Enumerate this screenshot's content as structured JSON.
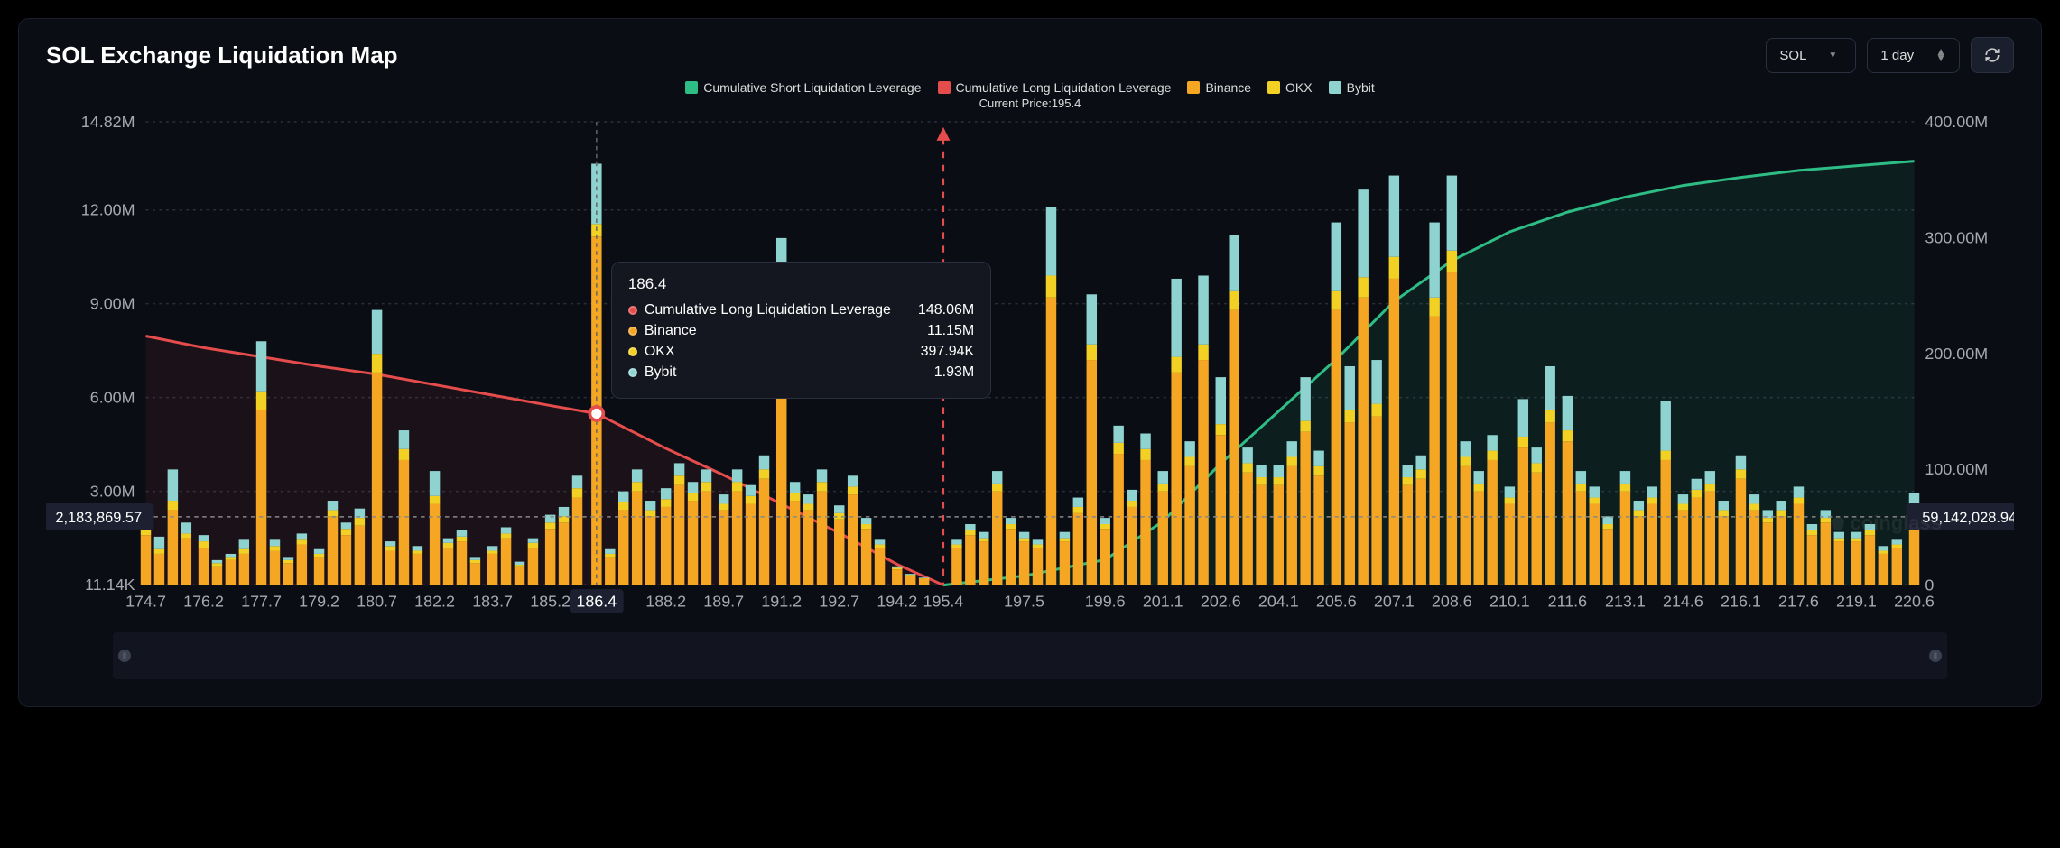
{
  "title": "SOL Exchange Liquidation Map",
  "controls": {
    "symbol": "SOL",
    "timeframe": "1 day"
  },
  "legend": [
    {
      "label": "Cumulative Short Liquidation Leverage",
      "color": "#2dbd85"
    },
    {
      "label": "Cumulative Long Liquidation Leverage",
      "color": "#e54c4c"
    },
    {
      "label": "Binance",
      "color": "#f5a623"
    },
    {
      "label": "OKX",
      "color": "#f2d024"
    },
    {
      "label": "Bybit",
      "color": "#8fd3d1"
    }
  ],
  "current_price_prefix": "Current Price:",
  "current_price": 195.4,
  "chart": {
    "type": "bar_stacked_with_lines",
    "background": "#0a0d14",
    "grid_color": "#2a2e3a",
    "axis_text_color": "#a6a9b3",
    "font_size": 12,
    "left_axis": {
      "ticks": [
        {
          "v": 11140,
          "label": "11.14K"
        },
        {
          "v": 3000000,
          "label": "3.00M"
        },
        {
          "v": 6000000,
          "label": "6.00M"
        },
        {
          "v": 9000000,
          "label": "9.00M"
        },
        {
          "v": 12000000,
          "label": "12.00M"
        },
        {
          "v": 14820000,
          "label": "14.82M"
        }
      ],
      "min": 0,
      "max": 14820000
    },
    "right_axis": {
      "ticks": [
        {
          "v": 0,
          "label": "0"
        },
        {
          "v": 100000000,
          "label": "100.00M"
        },
        {
          "v": 200000000,
          "label": "200.00M"
        },
        {
          "v": 300000000,
          "label": "300.00M"
        },
        {
          "v": 400000000,
          "label": "400.00M"
        }
      ],
      "min": 0,
      "max": 400000000
    },
    "crosshair_left_value": "2,183,869.57",
    "crosshair_right_value": "59,142,028.94",
    "hover_x": "186.4",
    "x_highlight": "186.4",
    "x_labels": [
      "174.7",
      "176.2",
      "177.7",
      "179.2",
      "180.7",
      "182.2",
      "183.7",
      "185.2",
      "186.4",
      "188.2",
      "189.7",
      "191.2",
      "192.7",
      "194.2",
      "195.4",
      "197.5",
      "199.6",
      "201.1",
      "202.6",
      "204.1",
      "205.6",
      "207.1",
      "208.6",
      "210.1",
      "211.6",
      "213.1",
      "214.6",
      "216.1",
      "217.6",
      "219.1",
      "220.6"
    ],
    "colors": {
      "binance": "#f5a623",
      "okx": "#f2d024",
      "bybit": "#8fd3d1",
      "long_line": "#e54c4c",
      "short_line": "#2dbd85",
      "long_area": "rgba(229,76,76,0.08)",
      "short_area": "rgba(45,189,133,0.10)",
      "current_price_line": "#e54c4c"
    },
    "long_line": [
      {
        "x": "174.7",
        "v": 215000000
      },
      {
        "x": "176.2",
        "v": 205000000
      },
      {
        "x": "177.7",
        "v": 197000000
      },
      {
        "x": "179.2",
        "v": 189000000
      },
      {
        "x": "180.7",
        "v": 182000000
      },
      {
        "x": "182.2",
        "v": 173000000
      },
      {
        "x": "183.7",
        "v": 164000000
      },
      {
        "x": "185.2",
        "v": 155000000
      },
      {
        "x": "186.4",
        "v": 148060000
      },
      {
        "x": "188.2",
        "v": 118000000
      },
      {
        "x": "189.7",
        "v": 95000000
      },
      {
        "x": "191.2",
        "v": 70000000
      },
      {
        "x": "192.7",
        "v": 45000000
      },
      {
        "x": "194.2",
        "v": 18000000
      },
      {
        "x": "195.4",
        "v": 0
      }
    ],
    "short_line": [
      {
        "x": "195.4",
        "v": 0
      },
      {
        "x": "197.5",
        "v": 8000000
      },
      {
        "x": "199.6",
        "v": 22000000
      },
      {
        "x": "201.1",
        "v": 55000000
      },
      {
        "x": "202.6",
        "v": 105000000
      },
      {
        "x": "204.1",
        "v": 150000000
      },
      {
        "x": "205.6",
        "v": 195000000
      },
      {
        "x": "207.1",
        "v": 245000000
      },
      {
        "x": "208.6",
        "v": 280000000
      },
      {
        "x": "210.1",
        "v": 305000000
      },
      {
        "x": "211.6",
        "v": 322000000
      },
      {
        "x": "213.1",
        "v": 335000000
      },
      {
        "x": "214.6",
        "v": 345000000
      },
      {
        "x": "216.1",
        "v": 352000000
      },
      {
        "x": "217.6",
        "v": 358000000
      },
      {
        "x": "219.1",
        "v": 362000000
      },
      {
        "x": "220.6",
        "v": 366000000
      }
    ],
    "bars": [
      {
        "x": "174.7",
        "b": 1.6,
        "o": 0.3,
        "y": 0.3
      },
      {
        "x": "175.05",
        "b": 1.0,
        "o": 0.15,
        "y": 0.4
      },
      {
        "x": "175.4",
        "b": 2.4,
        "o": 0.3,
        "y": 1.0
      },
      {
        "x": "175.75",
        "b": 1.5,
        "o": 0.15,
        "y": 0.35
      },
      {
        "x": "176.2",
        "b": 1.2,
        "o": 0.2,
        "y": 0.2
      },
      {
        "x": "176.55",
        "b": 0.6,
        "o": 0.1,
        "y": 0.1
      },
      {
        "x": "176.9",
        "b": 0.8,
        "o": 0.1,
        "y": 0.1
      },
      {
        "x": "177.25",
        "b": 1.0,
        "o": 0.15,
        "y": 0.3
      },
      {
        "x": "177.7",
        "b": 5.6,
        "o": 0.6,
        "y": 1.6
      },
      {
        "x": "178.05",
        "b": 1.1,
        "o": 0.15,
        "y": 0.2
      },
      {
        "x": "178.4",
        "b": 0.7,
        "o": 0.1,
        "y": 0.1
      },
      {
        "x": "178.75",
        "b": 1.3,
        "o": 0.15,
        "y": 0.2
      },
      {
        "x": "179.2",
        "b": 0.9,
        "o": 0.1,
        "y": 0.15
      },
      {
        "x": "179.55",
        "b": 2.2,
        "o": 0.2,
        "y": 0.3
      },
      {
        "x": "179.9",
        "b": 1.6,
        "o": 0.2,
        "y": 0.2
      },
      {
        "x": "180.25",
        "b": 1.9,
        "o": 0.25,
        "y": 0.3
      },
      {
        "x": "180.7",
        "b": 6.8,
        "o": 0.6,
        "y": 1.4
      },
      {
        "x": "181.05",
        "b": 1.1,
        "o": 0.15,
        "y": 0.15
      },
      {
        "x": "181.4",
        "b": 4.0,
        "o": 0.35,
        "y": 0.6
      },
      {
        "x": "181.75",
        "b": 1.0,
        "o": 0.1,
        "y": 0.15
      },
      {
        "x": "182.2",
        "b": 2.6,
        "o": 0.25,
        "y": 0.8
      },
      {
        "x": "182.55",
        "b": 1.2,
        "o": 0.15,
        "y": 0.15
      },
      {
        "x": "182.9",
        "b": 1.4,
        "o": 0.15,
        "y": 0.2
      },
      {
        "x": "183.25",
        "b": 0.7,
        "o": 0.1,
        "y": 0.1
      },
      {
        "x": "183.7",
        "b": 1.0,
        "o": 0.1,
        "y": 0.15
      },
      {
        "x": "184.05",
        "b": 1.5,
        "o": 0.15,
        "y": 0.2
      },
      {
        "x": "184.4",
        "b": 0.6,
        "o": 0.05,
        "y": 0.1
      },
      {
        "x": "184.75",
        "b": 1.2,
        "o": 0.15,
        "y": 0.15
      },
      {
        "x": "185.2",
        "b": 1.8,
        "o": 0.2,
        "y": 0.25
      },
      {
        "x": "185.55",
        "b": 2.0,
        "o": 0.2,
        "y": 0.3
      },
      {
        "x": "185.9",
        "b": 2.8,
        "o": 0.3,
        "y": 0.4
      },
      {
        "x": "186.4",
        "b": 11.15,
        "o": 0.398,
        "y": 1.93
      },
      {
        "x": "186.75",
        "b": 0.9,
        "o": 0.1,
        "y": 0.15
      },
      {
        "x": "187.1",
        "b": 2.4,
        "o": 0.25,
        "y": 0.35
      },
      {
        "x": "187.45",
        "b": 3.0,
        "o": 0.3,
        "y": 0.4
      },
      {
        "x": "187.8",
        "b": 2.2,
        "o": 0.2,
        "y": 0.3
      },
      {
        "x": "188.2",
        "b": 2.5,
        "o": 0.25,
        "y": 0.35
      },
      {
        "x": "188.55",
        "b": 3.2,
        "o": 0.3,
        "y": 0.4
      },
      {
        "x": "188.9",
        "b": 2.7,
        "o": 0.25,
        "y": 0.35
      },
      {
        "x": "189.25",
        "b": 3.0,
        "o": 0.3,
        "y": 0.4
      },
      {
        "x": "189.7",
        "b": 2.4,
        "o": 0.2,
        "y": 0.3
      },
      {
        "x": "190.05",
        "b": 3.0,
        "o": 0.3,
        "y": 0.4
      },
      {
        "x": "190.4",
        "b": 2.6,
        "o": 0.25,
        "y": 0.35
      },
      {
        "x": "190.75",
        "b": 3.4,
        "o": 0.3,
        "y": 0.45
      },
      {
        "x": "191.2",
        "b": 8.5,
        "o": 0.6,
        "y": 2.0
      },
      {
        "x": "191.55",
        "b": 2.7,
        "o": 0.25,
        "y": 0.35
      },
      {
        "x": "191.9",
        "b": 2.4,
        "o": 0.2,
        "y": 0.3
      },
      {
        "x": "192.25",
        "b": 3.0,
        "o": 0.3,
        "y": 0.4
      },
      {
        "x": "192.7",
        "b": 2.1,
        "o": 0.2,
        "y": 0.25
      },
      {
        "x": "193.05",
        "b": 2.9,
        "o": 0.25,
        "y": 0.35
      },
      {
        "x": "193.4",
        "b": 1.8,
        "o": 0.15,
        "y": 0.2
      },
      {
        "x": "193.75",
        "b": 1.2,
        "o": 0.1,
        "y": 0.15
      },
      {
        "x": "194.2",
        "b": 0.5,
        "o": 0.05,
        "y": 0.05
      },
      {
        "x": "194.55",
        "b": 0.3,
        "o": 0.03,
        "y": 0.03
      },
      {
        "x": "194.9",
        "b": 0.2,
        "o": 0.02,
        "y": 0.02
      },
      {
        "x": "195.75",
        "b": 1.2,
        "o": 0.1,
        "y": 0.15
      },
      {
        "x": "196.1",
        "b": 1.6,
        "o": 0.15,
        "y": 0.2
      },
      {
        "x": "196.45",
        "b": 1.4,
        "o": 0.1,
        "y": 0.2
      },
      {
        "x": "196.8",
        "b": 3.0,
        "o": 0.25,
        "y": 0.4
      },
      {
        "x": "197.15",
        "b": 1.8,
        "o": 0.15,
        "y": 0.2
      },
      {
        "x": "197.5",
        "b": 1.4,
        "o": 0.1,
        "y": 0.2
      },
      {
        "x": "197.85",
        "b": 1.2,
        "o": 0.1,
        "y": 0.15
      },
      {
        "x": "198.2",
        "b": 9.2,
        "o": 0.7,
        "y": 2.2
      },
      {
        "x": "198.55",
        "b": 1.4,
        "o": 0.1,
        "y": 0.2
      },
      {
        "x": "198.9",
        "b": 2.3,
        "o": 0.2,
        "y": 0.3
      },
      {
        "x": "199.25",
        "b": 7.2,
        "o": 0.5,
        "y": 1.6
      },
      {
        "x": "199.6",
        "b": 1.8,
        "o": 0.15,
        "y": 0.2
      },
      {
        "x": "199.95",
        "b": 4.2,
        "o": 0.35,
        "y": 0.55
      },
      {
        "x": "200.3",
        "b": 2.5,
        "o": 0.2,
        "y": 0.35
      },
      {
        "x": "200.65",
        "b": 4.0,
        "o": 0.35,
        "y": 0.5
      },
      {
        "x": "201.1",
        "b": 3.0,
        "o": 0.25,
        "y": 0.4
      },
      {
        "x": "201.45",
        "b": 6.8,
        "o": 0.5,
        "y": 2.5
      },
      {
        "x": "201.8",
        "b": 3.8,
        "o": 0.3,
        "y": 0.5
      },
      {
        "x": "202.15",
        "b": 7.2,
        "o": 0.5,
        "y": 2.2
      },
      {
        "x": "202.6",
        "b": 4.8,
        "o": 0.35,
        "y": 1.5
      },
      {
        "x": "202.95",
        "b": 8.8,
        "o": 0.6,
        "y": 1.8
      },
      {
        "x": "203.3",
        "b": 3.6,
        "o": 0.3,
        "y": 0.5
      },
      {
        "x": "203.65",
        "b": 3.2,
        "o": 0.25,
        "y": 0.4
      },
      {
        "x": "204.1",
        "b": 3.2,
        "o": 0.25,
        "y": 0.4
      },
      {
        "x": "204.45",
        "b": 3.8,
        "o": 0.3,
        "y": 0.5
      },
      {
        "x": "204.8",
        "b": 4.9,
        "o": 0.35,
        "y": 1.4
      },
      {
        "x": "205.15",
        "b": 3.5,
        "o": 0.3,
        "y": 0.5
      },
      {
        "x": "205.6",
        "b": 8.8,
        "o": 0.6,
        "y": 2.2
      },
      {
        "x": "205.95",
        "b": 5.2,
        "o": 0.4,
        "y": 1.4
      },
      {
        "x": "206.3",
        "b": 9.2,
        "o": 0.65,
        "y": 2.8
      },
      {
        "x": "206.65",
        "b": 5.4,
        "o": 0.4,
        "y": 1.4
      },
      {
        "x": "207.1",
        "b": 9.8,
        "o": 0.7,
        "y": 2.6
      },
      {
        "x": "207.45",
        "b": 3.2,
        "o": 0.25,
        "y": 0.4
      },
      {
        "x": "207.8",
        "b": 3.4,
        "o": 0.3,
        "y": 0.45
      },
      {
        "x": "208.15",
        "b": 8.6,
        "o": 0.6,
        "y": 2.4
      },
      {
        "x": "208.6",
        "b": 10.0,
        "o": 0.7,
        "y": 2.4
      },
      {
        "x": "208.95",
        "b": 3.8,
        "o": 0.3,
        "y": 0.5
      },
      {
        "x": "209.3",
        "b": 3.0,
        "o": 0.25,
        "y": 0.4
      },
      {
        "x": "209.65",
        "b": 4.0,
        "o": 0.3,
        "y": 0.5
      },
      {
        "x": "210.1",
        "b": 2.6,
        "o": 0.2,
        "y": 0.35
      },
      {
        "x": "210.45",
        "b": 4.4,
        "o": 0.35,
        "y": 1.2
      },
      {
        "x": "210.8",
        "b": 3.6,
        "o": 0.3,
        "y": 0.5
      },
      {
        "x": "211.15",
        "b": 5.2,
        "o": 0.4,
        "y": 1.4
      },
      {
        "x": "211.6",
        "b": 4.6,
        "o": 0.35,
        "y": 1.1
      },
      {
        "x": "211.95",
        "b": 3.0,
        "o": 0.25,
        "y": 0.4
      },
      {
        "x": "212.3",
        "b": 2.6,
        "o": 0.2,
        "y": 0.35
      },
      {
        "x": "212.65",
        "b": 1.8,
        "o": 0.15,
        "y": 0.25
      },
      {
        "x": "213.1",
        "b": 3.0,
        "o": 0.25,
        "y": 0.4
      },
      {
        "x": "213.45",
        "b": 2.2,
        "o": 0.2,
        "y": 0.3
      },
      {
        "x": "213.8",
        "b": 2.6,
        "o": 0.2,
        "y": 0.35
      },
      {
        "x": "214.15",
        "b": 4.0,
        "o": 0.3,
        "y": 1.6
      },
      {
        "x": "214.6",
        "b": 2.4,
        "o": 0.2,
        "y": 0.3
      },
      {
        "x": "214.95",
        "b": 2.8,
        "o": 0.25,
        "y": 0.35
      },
      {
        "x": "215.3",
        "b": 3.0,
        "o": 0.25,
        "y": 0.4
      },
      {
        "x": "215.65",
        "b": 2.2,
        "o": 0.2,
        "y": 0.3
      },
      {
        "x": "216.1",
        "b": 3.4,
        "o": 0.3,
        "y": 0.45
      },
      {
        "x": "216.45",
        "b": 2.4,
        "o": 0.2,
        "y": 0.3
      },
      {
        "x": "216.8",
        "b": 2.0,
        "o": 0.15,
        "y": 0.25
      },
      {
        "x": "217.15",
        "b": 2.2,
        "o": 0.2,
        "y": 0.3
      },
      {
        "x": "217.6",
        "b": 2.6,
        "o": 0.2,
        "y": 0.35
      },
      {
        "x": "217.95",
        "b": 1.6,
        "o": 0.15,
        "y": 0.2
      },
      {
        "x": "218.3",
        "b": 2.0,
        "o": 0.15,
        "y": 0.25
      },
      {
        "x": "218.65",
        "b": 1.4,
        "o": 0.1,
        "y": 0.2
      },
      {
        "x": "219.1",
        "b": 1.4,
        "o": 0.1,
        "y": 0.2
      },
      {
        "x": "219.45",
        "b": 1.6,
        "o": 0.15,
        "y": 0.2
      },
      {
        "x": "219.8",
        "b": 1.0,
        "o": 0.1,
        "y": 0.15
      },
      {
        "x": "220.15",
        "b": 1.2,
        "o": 0.1,
        "y": 0.15
      },
      {
        "x": "220.6",
        "b": 1.8,
        "o": 0.15,
        "y": 1.0
      }
    ]
  },
  "tooltip": {
    "title": "186.4",
    "rows": [
      {
        "color": "#e54c4c",
        "label": "Cumulative Long Liquidation Leverage",
        "value": "148.06M"
      },
      {
        "color": "#f5a623",
        "label": "Binance",
        "value": "11.15M"
      },
      {
        "color": "#f2d024",
        "label": "OKX",
        "value": "397.94K"
      },
      {
        "color": "#8fd3d1",
        "label": "Bybit",
        "value": "1.93M"
      }
    ]
  },
  "watermark": "coinglass"
}
